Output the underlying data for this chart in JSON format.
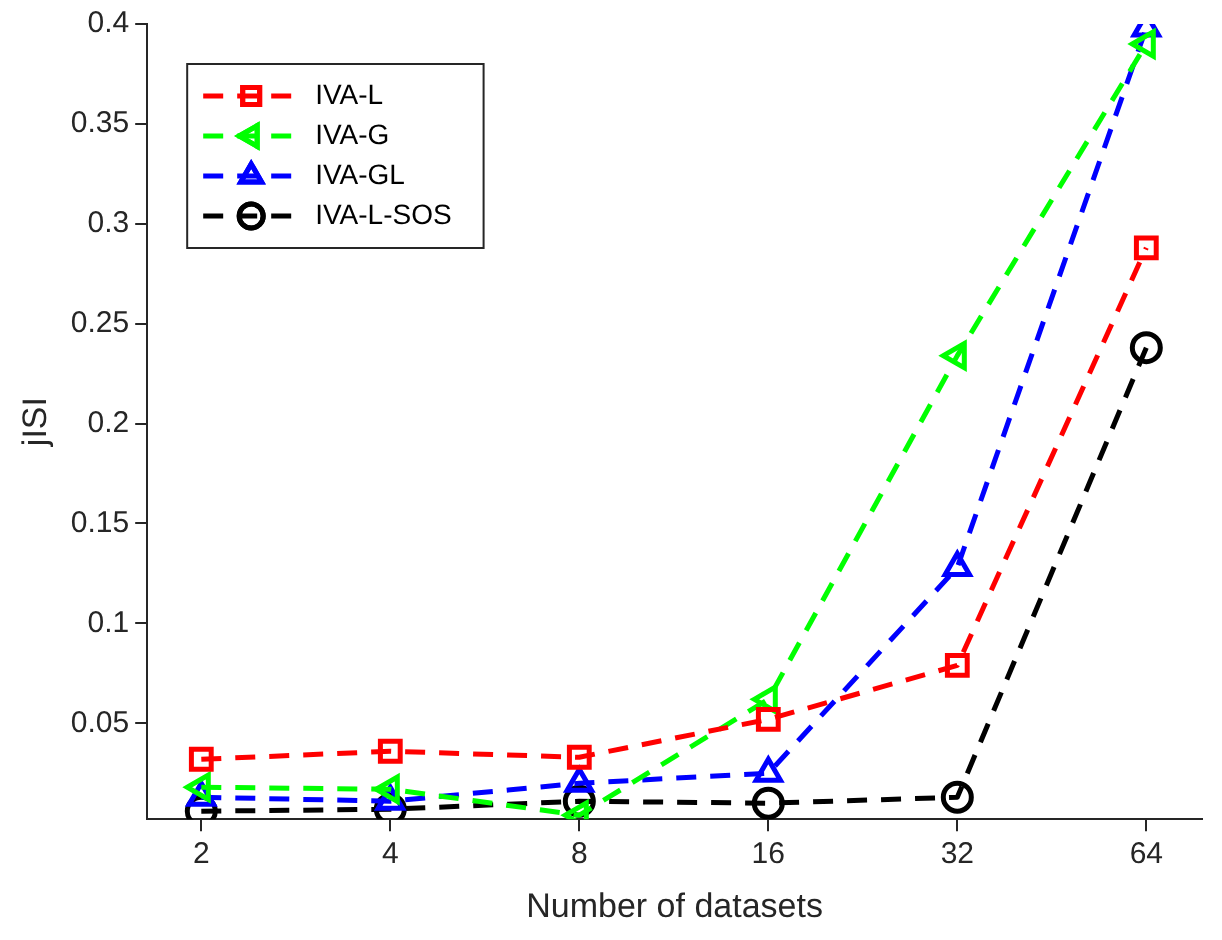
{
  "chart_data": {
    "type": "line",
    "xlabel": "Number of datasets",
    "ylabel": "jISI",
    "x": [
      2,
      4,
      8,
      16,
      32,
      64
    ],
    "log": "x",
    "xlim": [
      1.64,
      78.5
    ],
    "xticks": [
      2,
      4,
      8,
      16,
      32,
      64
    ],
    "ylim": [
      0.002,
      0.4
    ],
    "yticks": [
      0.05,
      0.1,
      0.15,
      0.2,
      0.25,
      0.3,
      0.35,
      0.4
    ],
    "grid": false,
    "legend": "top left",
    "line_style": "dashed",
    "series": [
      {
        "name": "IVA-L",
        "color": "#ff0000",
        "marker": "square",
        "values": [
          0.032,
          0.036,
          0.033,
          0.052,
          0.079,
          0.288
        ]
      },
      {
        "name": "IVA-G",
        "color": "#00ff00",
        "marker": "triangle-left",
        "values": [
          0.018,
          0.017,
          0.004,
          0.062,
          0.234,
          0.39
        ]
      },
      {
        "name": "IVA-GL",
        "color": "#0000ff",
        "marker": "triangle",
        "values": [
          0.013,
          0.011,
          0.02,
          0.025,
          0.128,
          0.398
        ]
      },
      {
        "name": "IVA-L-SOS",
        "color": "#000000",
        "marker": "circle",
        "values": [
          0.006,
          0.007,
          0.011,
          0.01,
          0.013,
          0.238
        ]
      }
    ]
  }
}
